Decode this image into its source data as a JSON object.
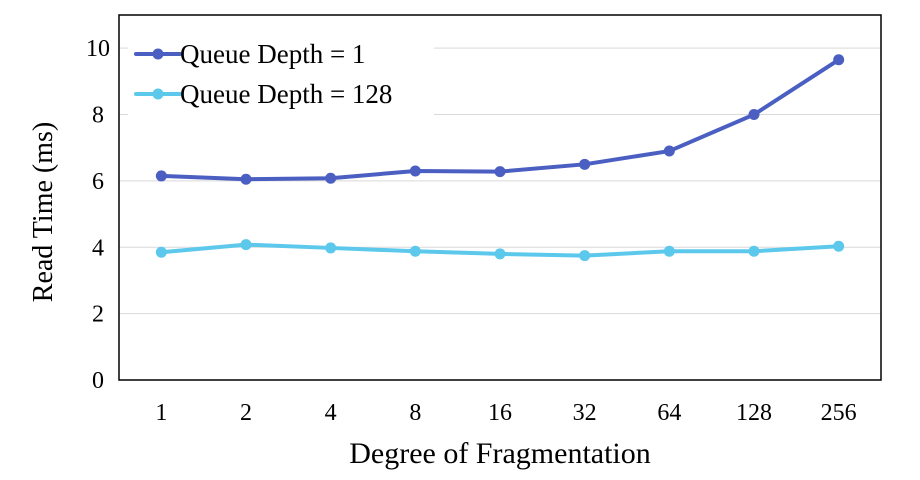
{
  "chart_data": {
    "type": "line",
    "title": "",
    "xlabel": "Degree of Fragmentation",
    "ylabel": "Read Time (ms)",
    "categories": [
      "1",
      "2",
      "4",
      "8",
      "16",
      "32",
      "64",
      "128",
      "256"
    ],
    "ylim": [
      0,
      11
    ],
    "yticks": [
      0,
      2,
      4,
      6,
      8,
      10
    ],
    "grid": true,
    "legend": "top-left",
    "series": [
      {
        "name": "Queue Depth = 1",
        "color": "#4A5FC1",
        "values": [
          6.15,
          6.05,
          6.08,
          6.3,
          6.28,
          6.5,
          6.9,
          8.0,
          9.65
        ]
      },
      {
        "name": "Queue Depth = 128",
        "color": "#5BC8EC",
        "values": [
          3.85,
          4.08,
          3.98,
          3.88,
          3.8,
          3.75,
          3.88,
          3.88,
          4.03
        ]
      }
    ]
  }
}
